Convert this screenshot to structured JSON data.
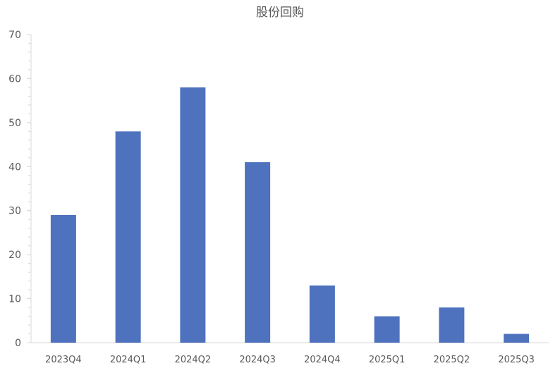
{
  "chart_data": {
    "type": "bar",
    "title": "股份回购",
    "xlabel": "",
    "ylabel": "",
    "categories": [
      "2023Q4",
      "2024Q1",
      "2024Q2",
      "2024Q3",
      "2024Q4",
      "2025Q1",
      "2025Q2",
      "2025Q3"
    ],
    "values": [
      29,
      48,
      58,
      41,
      13,
      6,
      8,
      2
    ],
    "ylim": [
      0,
      70
    ],
    "yticks": [
      0,
      10,
      20,
      30,
      40,
      50,
      60,
      70
    ],
    "minor_tick_step": 2,
    "grid": false,
    "legend": "none",
    "bar_color": "#4F72BE"
  }
}
